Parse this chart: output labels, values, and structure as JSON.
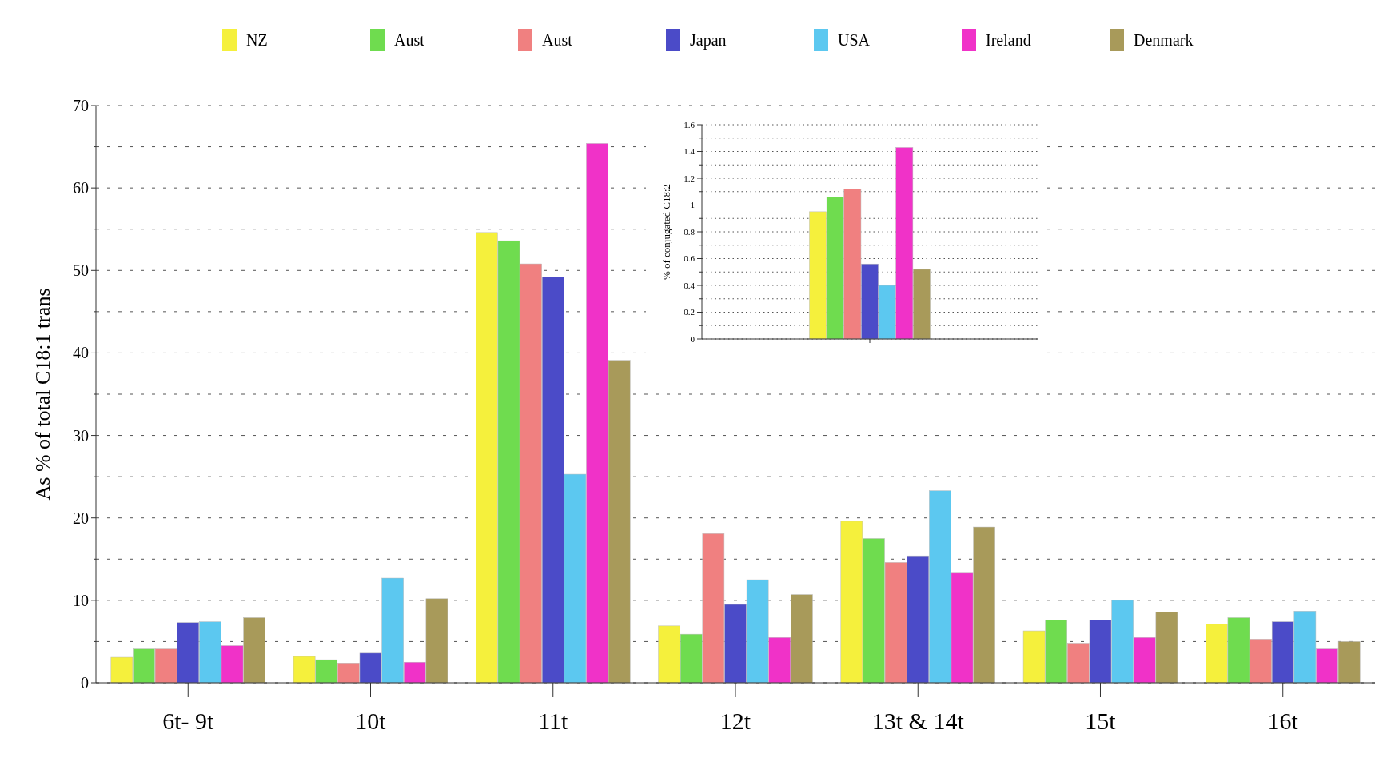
{
  "chart_data": [
    {
      "type": "bar",
      "ylabel": "As % of total C18:1 trans",
      "categories": [
        "6t- 9t",
        "10t",
        "11t",
        "12t",
        "13t & 14t",
        "15t",
        "16t"
      ],
      "series": [
        {
          "name": "NZ",
          "color": "#f5f03c",
          "values": [
            3.1,
            3.2,
            54.6,
            6.9,
            19.6,
            6.3,
            7.1
          ]
        },
        {
          "name": "Aust",
          "color": "#6fdc4f",
          "values": [
            4.1,
            2.8,
            53.6,
            5.9,
            17.5,
            7.6,
            7.9
          ]
        },
        {
          "name": "Aust",
          "color": "#f08080",
          "values": [
            4.1,
            2.4,
            50.8,
            18.1,
            14.6,
            4.8,
            5.3
          ]
        },
        {
          "name": "Japan",
          "color": "#4b4bc8",
          "values": [
            7.3,
            3.6,
            49.2,
            9.5,
            15.4,
            7.6,
            7.4
          ]
        },
        {
          "name": "USA",
          "color": "#5cc8f0",
          "values": [
            7.4,
            12.7,
            25.3,
            12.5,
            23.3,
            10,
            8.7
          ]
        },
        {
          "name": "Ireland",
          "color": "#f032c8",
          "values": [
            4.5,
            2.5,
            65.4,
            5.5,
            13.3,
            5.5,
            4.1
          ]
        },
        {
          "name": "Denmark",
          "color": "#a89a5a",
          "values": [
            7.9,
            10.2,
            39.1,
            10.7,
            18.9,
            8.6,
            5.0
          ]
        }
      ],
      "ylim": [
        0,
        70
      ],
      "yticks": [
        0,
        {
          "value": 5,
          "label": null
        },
        10,
        {
          "value": 15,
          "label": null
        },
        20,
        {
          "value": 25,
          "label": null
        },
        30,
        {
          "value": 35,
          "label": null
        },
        40,
        {
          "value": 45,
          "label": null
        },
        50,
        {
          "value": 55,
          "label": null
        },
        60,
        {
          "value": 65,
          "label": null
        },
        70
      ],
      "grid": "y",
      "legend": "top"
    },
    {
      "type": "bar",
      "ylabel": "% of conjugated C18:2",
      "categories": [
        null
      ],
      "series": [
        {
          "color": "#f5f03c",
          "values": [
            0.95
          ]
        },
        {
          "color": "#6fdc4f",
          "values": [
            1.06
          ]
        },
        {
          "color": "#f08080",
          "values": [
            1.12
          ]
        },
        {
          "color": "#4b4bc8",
          "values": [
            0.56
          ]
        },
        {
          "color": "#5cc8f0",
          "values": [
            0.4
          ]
        },
        {
          "color": "#f032c8",
          "values": [
            1.43
          ]
        },
        {
          "color": "#a89a5a",
          "values": [
            0.52
          ]
        }
      ],
      "ylim": [
        0,
        1.6
      ],
      "yticks": [
        0,
        {
          "value": 0.1,
          "label": null
        },
        0.2,
        {
          "value": 0.3,
          "label": null
        },
        0.4,
        {
          "value": 0.5,
          "label": null
        },
        0.6,
        {
          "value": 0.7,
          "label": null
        },
        0.8,
        {
          "value": 0.9,
          "label": null
        },
        1,
        {
          "value": 1.1,
          "label": null
        },
        1.2,
        {
          "value": 1.3,
          "label": null
        },
        1.4,
        {
          "value": 1.5,
          "label": null
        },
        1.6
      ],
      "grid": "y",
      "legend": false
    }
  ]
}
